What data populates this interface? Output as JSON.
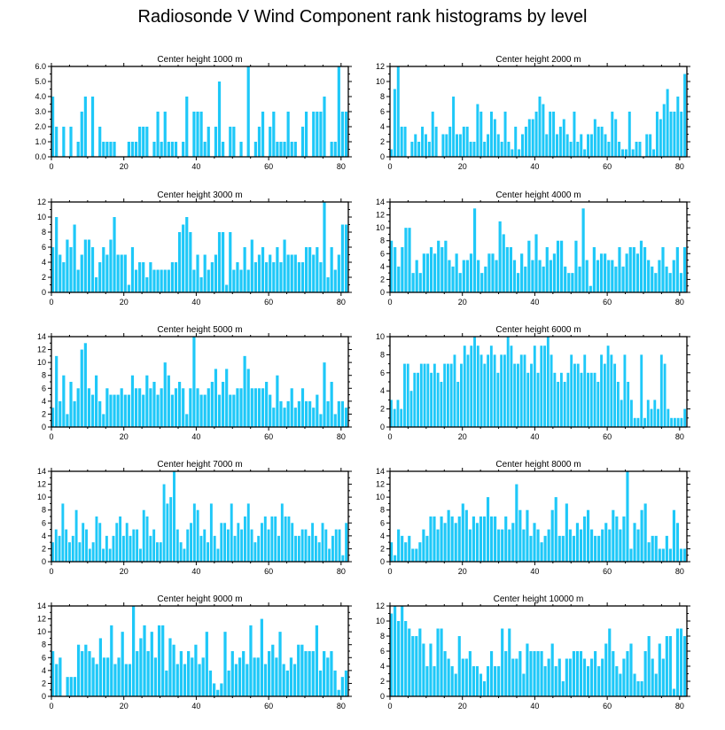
{
  "title": "Radiosonde V Wind Component rank histograms by level",
  "colors": {
    "bar": "#1ec8f8",
    "axis": "#000000",
    "background": "#ffffff"
  },
  "chart_data": [
    {
      "type": "bar",
      "title": "Center height 1000 m",
      "xlim": [
        0,
        82
      ],
      "ylim": [
        0,
        6
      ],
      "xticks": [
        0,
        20,
        40,
        60,
        80
      ],
      "yticks": [
        0,
        1,
        2,
        3,
        4,
        5,
        6
      ],
      "ytick_labels": [
        "0.0",
        "1.0",
        "2.0",
        "3.0",
        "4.0",
        "5.0",
        "6.0"
      ],
      "values": [
        4,
        2,
        0,
        2,
        0,
        2,
        0,
        1,
        3,
        4,
        0,
        4,
        0,
        2,
        1,
        1,
        1,
        1,
        0,
        0,
        0,
        1,
        1,
        1,
        2,
        2,
        2,
        0,
        1,
        3,
        1,
        3,
        1,
        1,
        1,
        0,
        1,
        4,
        0,
        3,
        3,
        3,
        1,
        2,
        0,
        2,
        5,
        1,
        0,
        2,
        2,
        0,
        1,
        0,
        6,
        0,
        1,
        2,
        3,
        0,
        2,
        3,
        1,
        1,
        1,
        3,
        1,
        1,
        0,
        2,
        3,
        0,
        3,
        3,
        3,
        4,
        0,
        1,
        1,
        6,
        3,
        3
      ]
    },
    {
      "type": "bar",
      "title": "Center height 2000 m",
      "xlim": [
        0,
        82
      ],
      "ylim": [
        0,
        12
      ],
      "xticks": [
        0,
        20,
        40,
        60,
        80
      ],
      "yticks": [
        0,
        2,
        4,
        6,
        8,
        10,
        12
      ],
      "ytick_labels": [
        "0",
        "2",
        "4",
        "6",
        "8",
        "10",
        "12"
      ],
      "values": [
        1,
        9,
        12,
        4,
        4,
        0,
        2,
        3,
        2,
        4,
        3,
        2,
        6,
        4,
        0,
        3,
        3,
        4,
        8,
        3,
        3,
        4,
        4,
        2,
        2,
        7,
        6,
        2,
        3,
        6,
        5,
        3,
        2,
        6,
        2,
        1,
        4,
        1,
        3,
        4,
        5,
        5,
        6,
        8,
        7,
        3,
        6,
        6,
        3,
        4,
        5,
        3,
        2,
        6,
        2,
        3,
        1,
        3,
        3,
        5,
        4,
        4,
        3,
        2,
        6,
        5,
        2,
        1,
        1,
        6,
        1,
        2,
        2,
        0,
        3,
        3,
        1,
        6,
        5,
        7,
        9,
        6,
        6,
        8,
        6,
        11
      ]
    },
    {
      "type": "bar",
      "title": "Center height 3000 m",
      "xlim": [
        0,
        82
      ],
      "ylim": [
        0,
        12
      ],
      "xticks": [
        0,
        20,
        40,
        60,
        80
      ],
      "yticks": [
        0,
        2,
        4,
        6,
        8,
        10,
        12
      ],
      "ytick_labels": [
        "0",
        "2",
        "4",
        "6",
        "8",
        "10",
        "12"
      ],
      "values": [
        6,
        10,
        5,
        4,
        7,
        6,
        9,
        3,
        5,
        7,
        7,
        6,
        2,
        4,
        6,
        5,
        7,
        10,
        5,
        5,
        5,
        1,
        6,
        3,
        4,
        4,
        2,
        4,
        3,
        3,
        3,
        3,
        3,
        4,
        4,
        8,
        9,
        10,
        8,
        3,
        5,
        2,
        5,
        3,
        4,
        5,
        8,
        8,
        1,
        8,
        3,
        4,
        3,
        6,
        3,
        7,
        4,
        5,
        6,
        4,
        5,
        4,
        6,
        4,
        7,
        5,
        5,
        5,
        4,
        4,
        6,
        6,
        5,
        6,
        4,
        12,
        2,
        6,
        3,
        5,
        9,
        9
      ]
    },
    {
      "type": "bar",
      "title": "Center height 4000 m",
      "xlim": [
        0,
        82
      ],
      "ylim": [
        0,
        14
      ],
      "xticks": [
        0,
        20,
        40,
        60,
        80
      ],
      "yticks": [
        0,
        2,
        4,
        6,
        8,
        10,
        12,
        14
      ],
      "ytick_labels": [
        "0",
        "2",
        "4",
        "6",
        "8",
        "10",
        "12",
        "14"
      ],
      "values": [
        8,
        7,
        4,
        7,
        10,
        10,
        3,
        5,
        3,
        6,
        6,
        7,
        6,
        8,
        7,
        8,
        5,
        4,
        6,
        3,
        5,
        5,
        6,
        13,
        5,
        3,
        4,
        6,
        6,
        5,
        11,
        9,
        7,
        7,
        5,
        3,
        6,
        4,
        8,
        5,
        9,
        5,
        4,
        7,
        5,
        6,
        8,
        8,
        4,
        3,
        3,
        8,
        4,
        13,
        5,
        1,
        7,
        5,
        6,
        6,
        5,
        5,
        4,
        7,
        4,
        6,
        7,
        7,
        6,
        8,
        7,
        5,
        4,
        3,
        5,
        7,
        4,
        3,
        5,
        7,
        3,
        7
      ]
    },
    {
      "type": "bar",
      "title": "Center height 5000 m",
      "xlim": [
        0,
        82
      ],
      "ylim": [
        0,
        14
      ],
      "xticks": [
        0,
        20,
        40,
        60,
        80
      ],
      "yticks": [
        0,
        2,
        4,
        6,
        8,
        10,
        12,
        14
      ],
      "ytick_labels": [
        "0",
        "2",
        "4",
        "6",
        "8",
        "10",
        "12",
        "14"
      ],
      "values": [
        3,
        11,
        4,
        8,
        2,
        7,
        4,
        6,
        12,
        13,
        6,
        5,
        8,
        4,
        2,
        6,
        5,
        5,
        5,
        6,
        5,
        5,
        8,
        6,
        6,
        5,
        8,
        6,
        7,
        5,
        6,
        10,
        8,
        5,
        6,
        7,
        6,
        2,
        6,
        14,
        6,
        5,
        5,
        6,
        7,
        9,
        5,
        7,
        9,
        5,
        5,
        6,
        6,
        11,
        9,
        6,
        6,
        6,
        6,
        7,
        5,
        3,
        8,
        4,
        3,
        4,
        6,
        3,
        4,
        6,
        4,
        4,
        3,
        5,
        2,
        10,
        4,
        7,
        2,
        4,
        4,
        3
      ]
    },
    {
      "type": "bar",
      "title": "Center height 6000 m",
      "xlim": [
        0,
        82
      ],
      "ylim": [
        0,
        10
      ],
      "xticks": [
        0,
        20,
        40,
        60,
        80
      ],
      "yticks": [
        0,
        2,
        4,
        6,
        8,
        10
      ],
      "ytick_labels": [
        "0",
        "2",
        "4",
        "6",
        "8",
        "10"
      ],
      "values": [
        3,
        2,
        3,
        2,
        7,
        7,
        4,
        6,
        6,
        7,
        7,
        7,
        6,
        7,
        6,
        5,
        7,
        7,
        7,
        8,
        5,
        7,
        9,
        8,
        9,
        10,
        9,
        8,
        7,
        8,
        9,
        8,
        6,
        8,
        8,
        10,
        9,
        7,
        7,
        8,
        8,
        6,
        7,
        9,
        6,
        9,
        9,
        10,
        8,
        6,
        5,
        6,
        5,
        6,
        8,
        7,
        7,
        6,
        8,
        6,
        6,
        6,
        5,
        8,
        7,
        9,
        8,
        7,
        5,
        3,
        8,
        5,
        3,
        1,
        1,
        8,
        1,
        3,
        2,
        3,
        2,
        8,
        7,
        2,
        1,
        1,
        1,
        1,
        2
      ]
    },
    {
      "type": "bar",
      "title": "Center height 7000 m",
      "xlim": [
        0,
        82
      ],
      "ylim": [
        0,
        14
      ],
      "xticks": [
        0,
        20,
        40,
        60,
        80
      ],
      "yticks": [
        0,
        2,
        4,
        6,
        8,
        10,
        12,
        14
      ],
      "ytick_labels": [
        "0",
        "2",
        "4",
        "6",
        "8",
        "10",
        "12",
        "14"
      ],
      "values": [
        3,
        5,
        4,
        9,
        5,
        3,
        4,
        8,
        3,
        6,
        5,
        2,
        3,
        7,
        6,
        2,
        4,
        2,
        4,
        6,
        7,
        4,
        6,
        4,
        5,
        5,
        2,
        8,
        7,
        4,
        5,
        3,
        3,
        12,
        9,
        10,
        14,
        5,
        3,
        2,
        5,
        6,
        9,
        8,
        4,
        5,
        3,
        9,
        4,
        2,
        6,
        6,
        5,
        9,
        4,
        6,
        5,
        7,
        9,
        5,
        3,
        4,
        6,
        7,
        5,
        7,
        7,
        4,
        9,
        7,
        7,
        6,
        4,
        4,
        5,
        5,
        4,
        6,
        4,
        3,
        6,
        5,
        2,
        4,
        5,
        5,
        1,
        6
      ]
    },
    {
      "type": "bar",
      "title": "Center height 8000 m",
      "xlim": [
        0,
        82
      ],
      "ylim": [
        0,
        14
      ],
      "xticks": [
        0,
        20,
        40,
        60,
        80
      ],
      "yticks": [
        0,
        2,
        4,
        6,
        8,
        10,
        12,
        14
      ],
      "ytick_labels": [
        "0",
        "2",
        "4",
        "6",
        "8",
        "10",
        "12",
        "14"
      ],
      "values": [
        3,
        1,
        5,
        4,
        3,
        4,
        2,
        2,
        3,
        5,
        4,
        7,
        7,
        5,
        7,
        6,
        8,
        7,
        6,
        7,
        9,
        8,
        5,
        7,
        6,
        7,
        7,
        10,
        7,
        7,
        5,
        5,
        7,
        5,
        6,
        12,
        8,
        5,
        8,
        4,
        6,
        5,
        3,
        4,
        5,
        8,
        10,
        4,
        4,
        9,
        5,
        4,
        6,
        5,
        7,
        8,
        5,
        4,
        4,
        5,
        6,
        5,
        8,
        7,
        5,
        7,
        14,
        2,
        6,
        5,
        8,
        9,
        3,
        4,
        4,
        2,
        2,
        4,
        2,
        8,
        6,
        2,
        2
      ]
    },
    {
      "type": "bar",
      "title": "Center height 9000 m",
      "xlim": [
        0,
        82
      ],
      "ylim": [
        0,
        14
      ],
      "xticks": [
        0,
        20,
        40,
        60,
        80
      ],
      "yticks": [
        0,
        2,
        4,
        6,
        8,
        10,
        12,
        14
      ],
      "ytick_labels": [
        "0",
        "2",
        "4",
        "6",
        "8",
        "10",
        "12",
        "14"
      ],
      "values": [
        7,
        5,
        6,
        0,
        3,
        3,
        3,
        8,
        7,
        8,
        7,
        6,
        5,
        9,
        6,
        6,
        11,
        5,
        6,
        10,
        5,
        5,
        14,
        7,
        9,
        11,
        7,
        10,
        6,
        11,
        11,
        4,
        9,
        8,
        5,
        7,
        5,
        7,
        6,
        8,
        5,
        6,
        10,
        4,
        2,
        1,
        2,
        10,
        4,
        7,
        5,
        6,
        7,
        5,
        11,
        6,
        6,
        12,
        5,
        7,
        8,
        6,
        10,
        5,
        4,
        6,
        5,
        8,
        8,
        7,
        7,
        7,
        11,
        4,
        7,
        6,
        7,
        4,
        1,
        3,
        4
      ]
    },
    {
      "type": "bar",
      "title": "Center height 10000 m",
      "xlim": [
        0,
        82
      ],
      "ylim": [
        0,
        12
      ],
      "xticks": [
        0,
        20,
        40,
        60,
        80
      ],
      "yticks": [
        0,
        2,
        4,
        6,
        8,
        10,
        12
      ],
      "ytick_labels": [
        "0",
        "2",
        "4",
        "6",
        "8",
        "10",
        "12"
      ],
      "values": [
        11,
        12,
        10,
        12,
        10,
        9,
        8,
        8,
        9,
        7,
        4,
        7,
        4,
        9,
        9,
        6,
        5,
        4,
        3,
        8,
        5,
        5,
        6,
        4,
        4,
        3,
        2,
        4,
        6,
        4,
        4,
        9,
        6,
        9,
        5,
        5,
        6,
        3,
        7,
        6,
        6,
        6,
        6,
        4,
        5,
        7,
        4,
        5,
        2,
        5,
        5,
        6,
        6,
        6,
        5,
        4,
        5,
        6,
        4,
        5,
        7,
        9,
        6,
        4,
        3,
        5,
        6,
        7,
        3,
        2,
        2,
        6,
        8,
        5,
        3,
        7,
        5,
        8,
        8,
        1,
        9,
        9,
        8
      ]
    }
  ]
}
